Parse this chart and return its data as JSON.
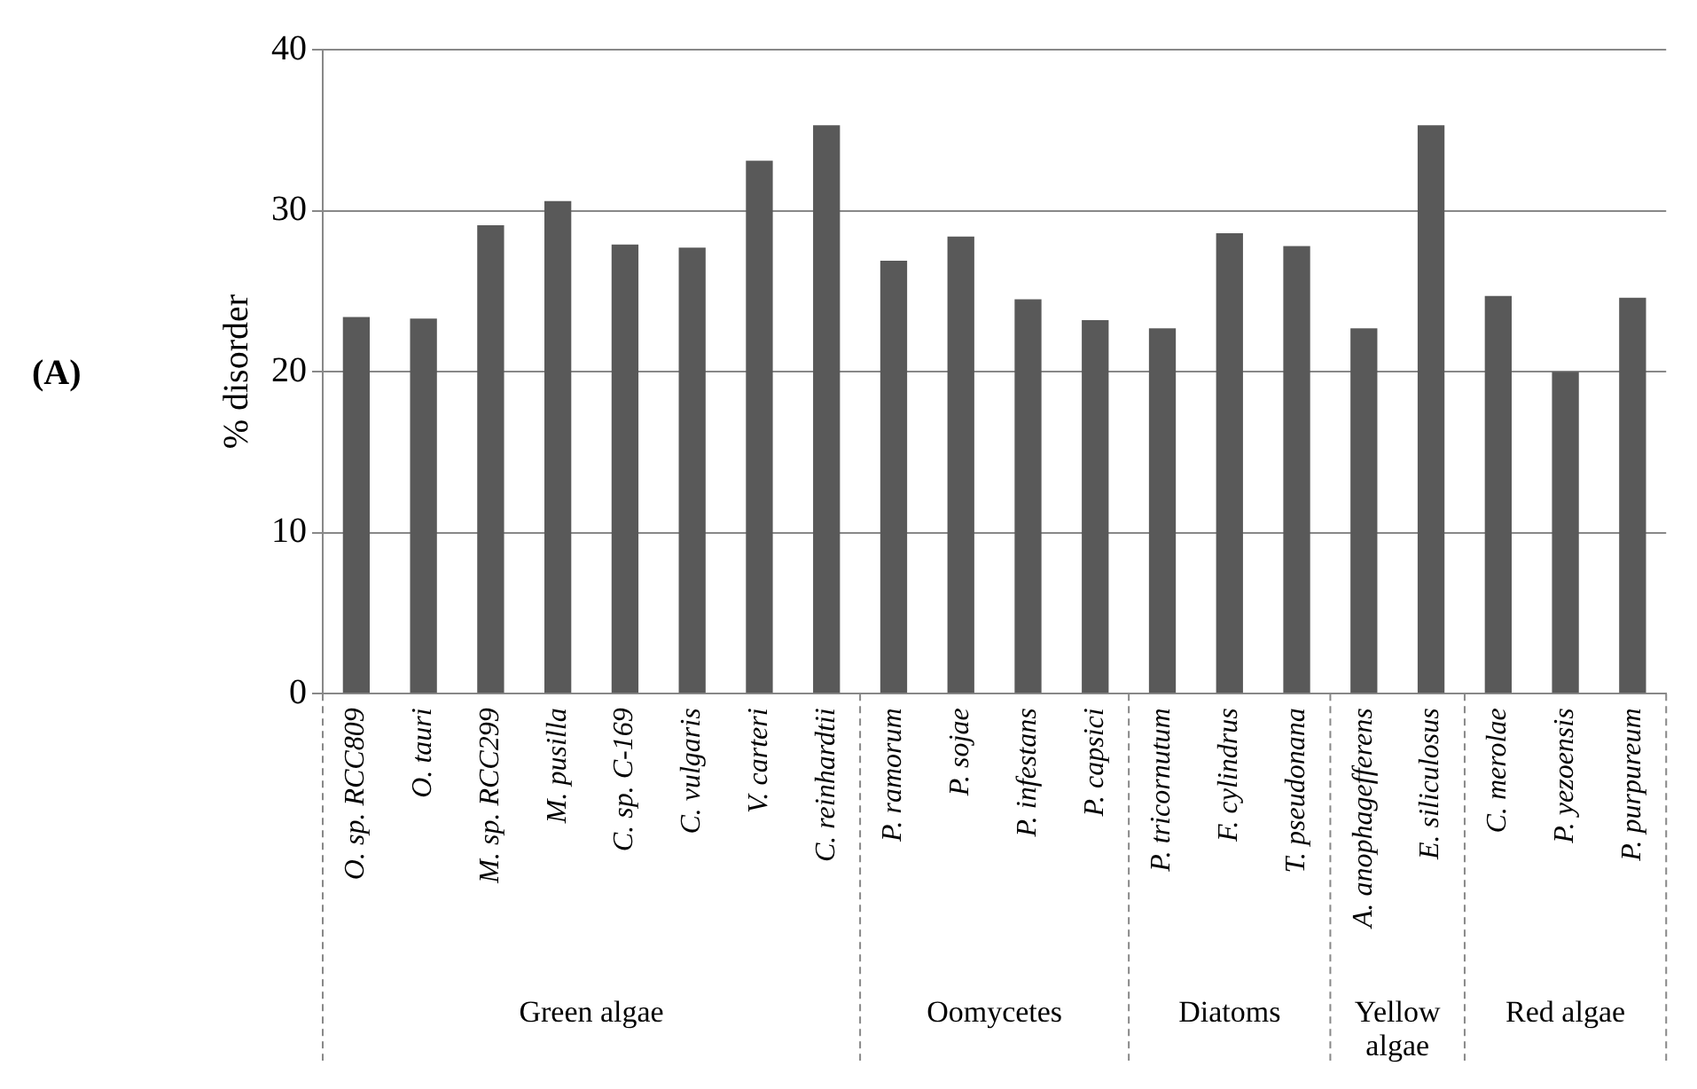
{
  "chart_data": {
    "type": "bar",
    "ylabel": "% disorder",
    "categories": [
      "O. sp. RCC809",
      "O. tauri",
      "M. sp. RCC299",
      "M. pusilla",
      "C. sp. C-169",
      "C. vulgaris",
      "V. carteri",
      "C. reinhardtii",
      "P. ramorum",
      "P. sojae",
      "P. infestans",
      "P. capsici",
      "P. tricornutum",
      "F. cylindrus",
      "T. pseudonana",
      "A. anophagefferens",
      "E. siliculosus",
      "C. merolae",
      "P. yezoensis",
      "P. purpureum"
    ],
    "values": [
      23.4,
      23.3,
      29.1,
      30.6,
      27.9,
      27.7,
      33.1,
      35.3,
      26.9,
      28.4,
      24.5,
      23.2,
      22.7,
      28.6,
      27.8,
      22.7,
      35.3,
      24.7,
      20.0,
      24.6
    ],
    "color": "#595959",
    "ylim": [
      0,
      40
    ],
    "yticks": [
      0,
      10,
      20,
      30,
      40
    ],
    "grid": "y",
    "legend": false,
    "annotations": [
      "(A)",
      "Green algae",
      "Oomycetes",
      "Diatoms",
      "Yellow algae",
      "Red algae"
    ]
  }
}
